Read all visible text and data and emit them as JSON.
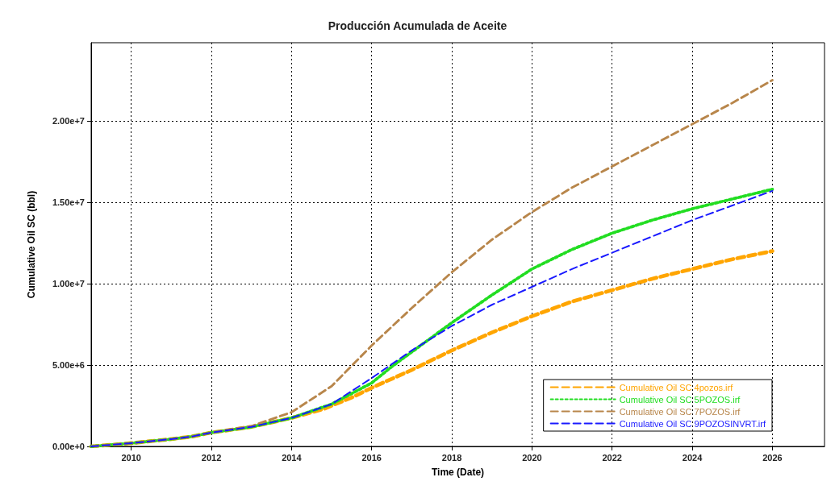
{
  "chart_data": {
    "type": "line",
    "title": "Producción Acumulada de Aceite",
    "xlabel": "Time (Date)",
    "ylabel": "Cumulative Oil SC (bbl)",
    "xlim": [
      2009,
      2027.3
    ],
    "xticks": [
      2010,
      2012,
      2014,
      2016,
      2018,
      2020,
      2022,
      2024,
      2026
    ],
    "ylim": [
      0,
      24800000
    ],
    "yticks": [
      {
        "value": 0,
        "label": "0.00e+0"
      },
      {
        "value": 5000000,
        "label": "5.00e+6"
      },
      {
        "value": 10000000,
        "label": "1.00e+7"
      },
      {
        "value": 15000000,
        "label": "1.50e+7"
      },
      {
        "value": 20000000,
        "label": "2.00e+7"
      }
    ],
    "grid": true,
    "legend": "bottom right",
    "marker": "none",
    "line_style": "dashed",
    "series": [
      {
        "name": "Cumulative Oil SC 4pozos.irf",
        "color": "#ffa500",
        "x": [
          2009,
          2010,
          2011,
          2011.5,
          2012,
          2013,
          2014,
          2014.8,
          2015.5,
          2016,
          2017,
          2018,
          2019,
          2020,
          2021,
          2022,
          2023,
          2024,
          2025,
          2026
        ],
        "values": [
          0,
          200000,
          450000,
          600000,
          850000,
          1200000,
          1750000,
          2300000,
          3000000,
          3600000,
          4700000,
          5900000,
          7000000,
          8000000,
          8900000,
          9600000,
          10300000,
          10900000,
          11500000,
          12000000
        ]
      },
      {
        "name": "Cumulative Oil SC 5POZOS.irf",
        "color": "#22dd22",
        "line_style": "dotted",
        "x": [
          2009,
          2010,
          2011,
          2011.5,
          2012,
          2013,
          2014,
          2015,
          2016,
          2016.5,
          2017,
          2018,
          2019,
          2020,
          2021,
          2022,
          2023,
          2024,
          2025,
          2026
        ],
        "values": [
          0,
          200000,
          450000,
          600000,
          850000,
          1200000,
          1750000,
          2600000,
          3900000,
          4900000,
          5800000,
          7600000,
          9300000,
          10900000,
          12100000,
          13100000,
          13900000,
          14600000,
          15200000,
          15800000
        ]
      },
      {
        "name": "Cumulative Oil SC 7POZOS.irf",
        "color": "#b8864b",
        "x": [
          2009,
          2010,
          2011,
          2011.5,
          2012,
          2013,
          2014,
          2015,
          2016,
          2017,
          2018,
          2019,
          2020,
          2021,
          2022,
          2023,
          2024,
          2025,
          2026
        ],
        "values": [
          0,
          200000,
          450000,
          600000,
          850000,
          1250000,
          2100000,
          3700000,
          6200000,
          8500000,
          10700000,
          12700000,
          14400000,
          15900000,
          17200000,
          18500000,
          19800000,
          21100000,
          22500000
        ]
      },
      {
        "name": "Cumulative Oil SC 9POZOSINVRT.irf",
        "color": "#1a1aff",
        "x": [
          2009,
          2010,
          2011,
          2011.5,
          2012,
          2013,
          2014,
          2015,
          2016,
          2017,
          2018,
          2019,
          2020,
          2021,
          2022,
          2023,
          2024,
          2025,
          2026
        ],
        "values": [
          0,
          200000,
          450000,
          600000,
          850000,
          1200000,
          1750000,
          2600000,
          4200000,
          5900000,
          7400000,
          8700000,
          9800000,
          10900000,
          11900000,
          12900000,
          13900000,
          14800000,
          15700000
        ]
      }
    ]
  }
}
